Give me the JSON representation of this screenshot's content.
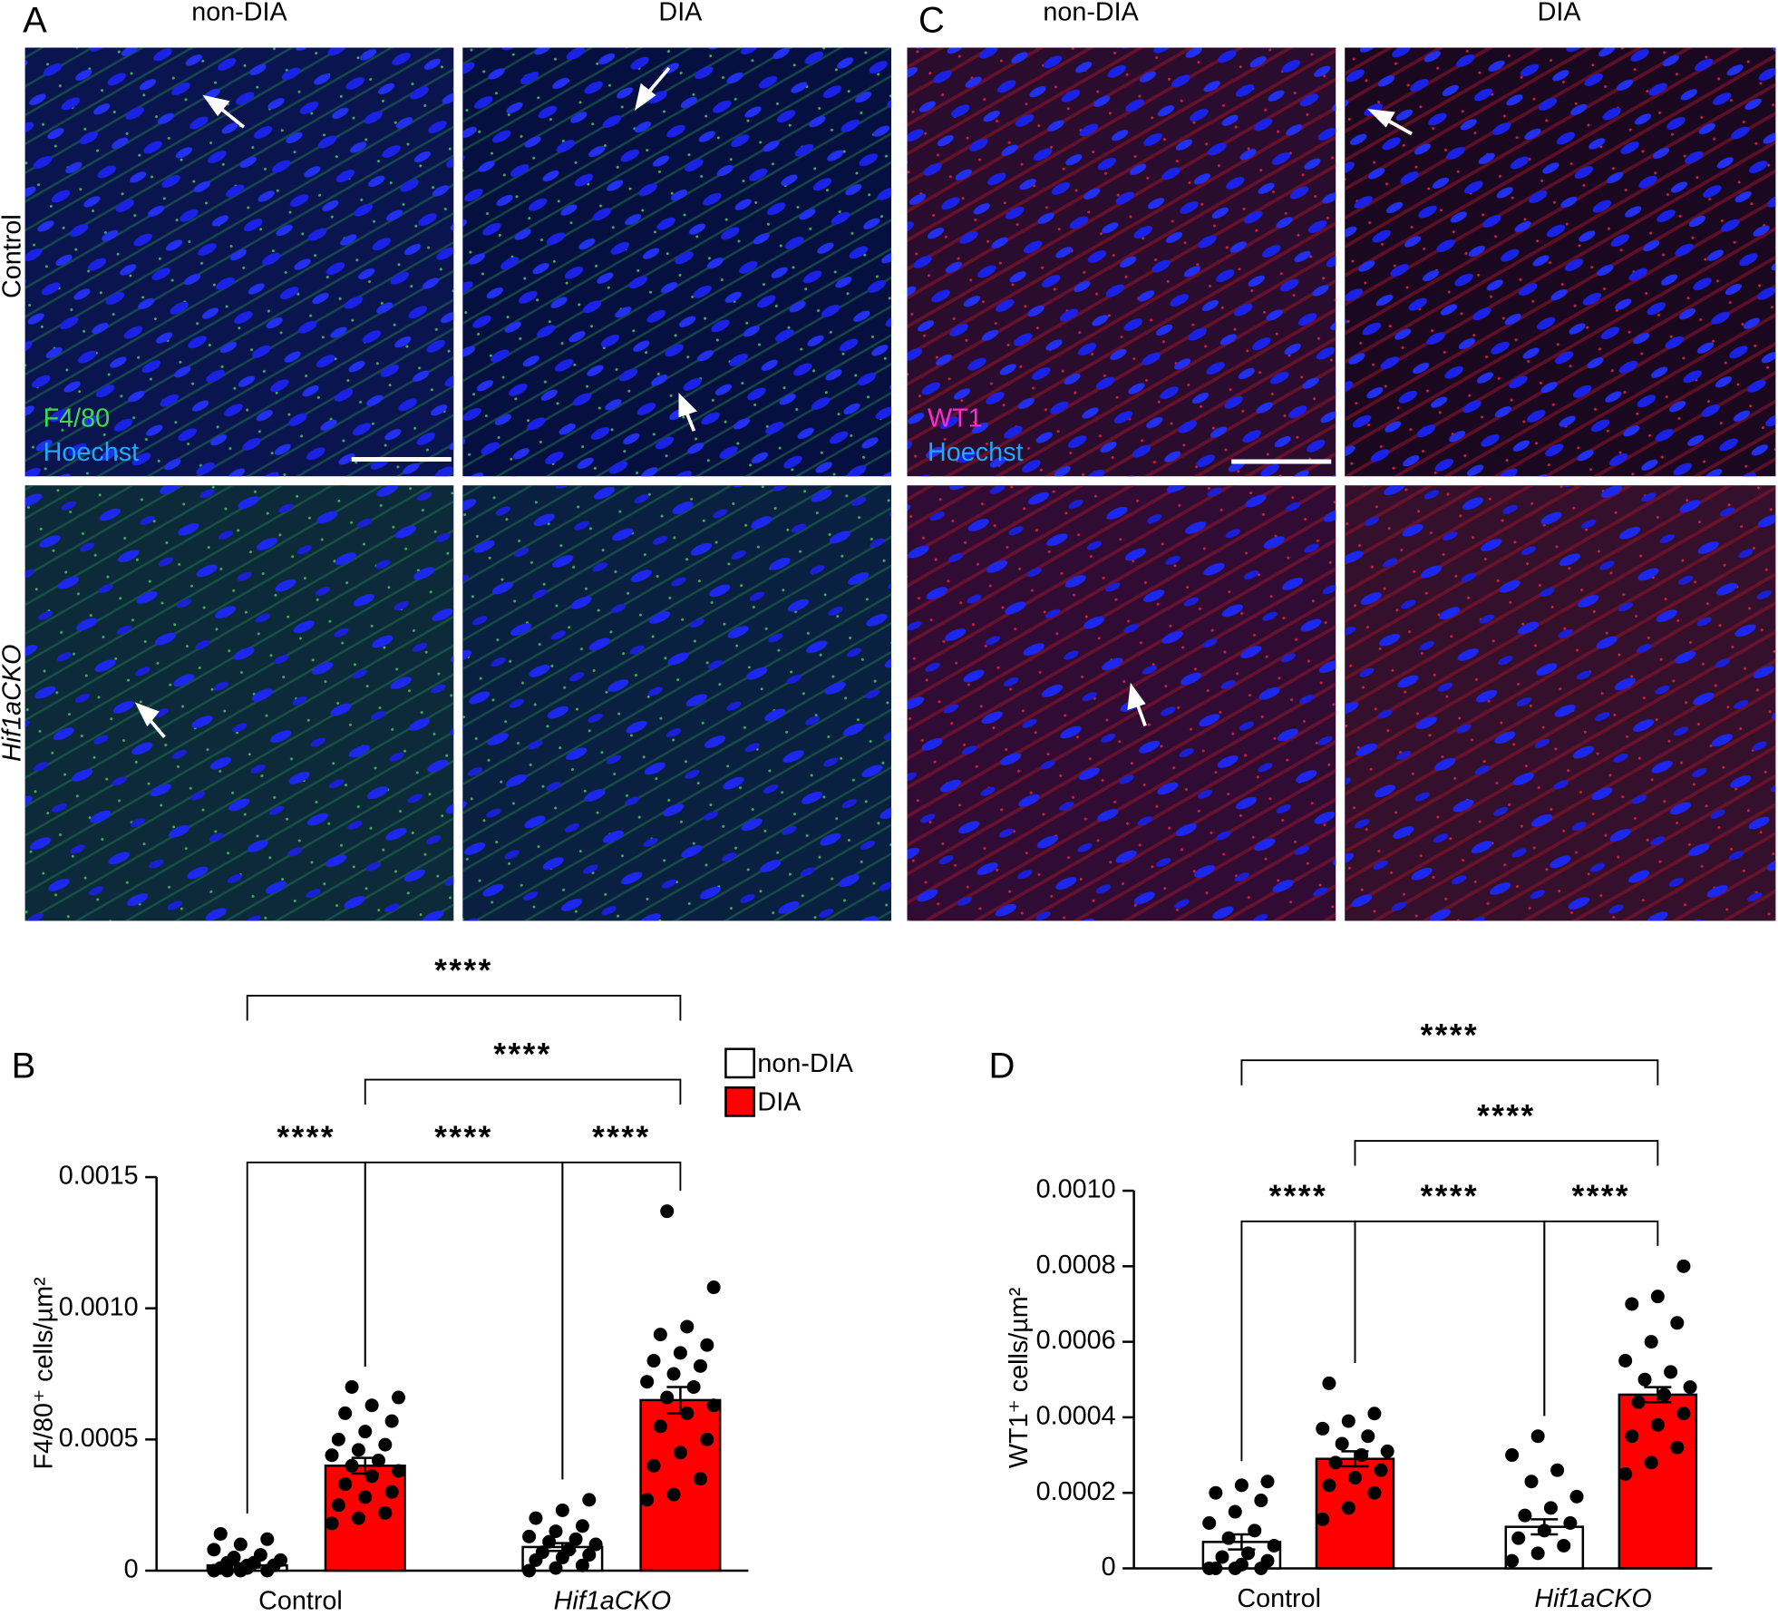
{
  "images": {
    "rows": [
      "Control",
      "Hif1aCKO"
    ],
    "panels": [
      {
        "letter": "A",
        "columns": [
          "non-DIA",
          "DIA"
        ],
        "stains": [
          "F4/80",
          "Hoechst"
        ]
      },
      {
        "letter": "C",
        "columns": [
          "non-DIA",
          "DIA"
        ],
        "stains": [
          "WT1",
          "Hoechst"
        ]
      }
    ]
  },
  "chart_data": [
    {
      "type": "bar",
      "label": "B",
      "ylabel": "F4/80⁺ cells/µm²",
      "categories": [
        "Control",
        "Hif1aCKO"
      ],
      "ylim": [
        0,
        0.0015
      ],
      "yticks": [
        0,
        0.0005,
        {
          "value": 0.001,
          "label": "0.0010"
        },
        0.0015
      ],
      "legend": true,
      "series": [
        {
          "name": "non-DIA",
          "color": "#ffffff",
          "values": [
            2e-05,
            9e-05
          ],
          "errors": [
            8e-06,
            1.5e-05
          ],
          "points": [
            [
              0,
              0,
              0,
              1e-05,
              2e-05,
              2e-05,
              3e-05,
              3e-05,
              4e-05,
              5e-05,
              6e-05,
              8e-05,
              0.0001,
              0.00012,
              0.00014,
              1e-05,
              2e-05,
              0
            ],
            [
              0,
              1e-05,
              2e-05,
              4e-05,
              5e-05,
              6e-05,
              7e-05,
              8e-05,
              0.0001,
              0.00011,
              0.00012,
              0.00013,
              0.00015,
              0.00017,
              0.0002,
              0.00023,
              0.00027
            ]
          ]
        },
        {
          "name": "DIA",
          "color": "#ff0000",
          "values": [
            0.0004,
            0.00065
          ],
          "errors": [
            3e-05,
            5e-05
          ],
          "points": [
            [
              0.00018,
              0.0002,
              0.00022,
              0.00025,
              0.00028,
              0.0003,
              0.00033,
              0.00036,
              0.00038,
              0.0004,
              0.00042,
              0.00044,
              0.00046,
              0.00048,
              0.0005,
              0.00053,
              0.00057,
              0.0006,
              0.00063,
              0.00066,
              0.0007
            ],
            [
              0.00027,
              0.00029,
              0.00035,
              0.0004,
              0.00045,
              0.0005,
              0.00055,
              0.0006,
              0.00063,
              0.00066,
              0.0007,
              0.00072,
              0.00075,
              0.00078,
              0.0008,
              0.00083,
              0.00086,
              0.0009,
              0.00093,
              0.00108,
              0.00137
            ]
          ]
        }
      ],
      "comparisons": [
        {
          "label": "****",
          "groups": [
            [
              0,
              0
            ],
            [
              0,
              1
            ]
          ]
        },
        {
          "label": "****",
          "groups": [
            [
              0,
              1
            ],
            [
              1,
              0
            ]
          ]
        },
        {
          "label": "****",
          "groups": [
            [
              1,
              0
            ],
            [
              1,
              1
            ]
          ]
        },
        {
          "label": "****",
          "groups": [
            [
              0,
              1
            ],
            [
              1,
              1
            ]
          ]
        },
        {
          "label": "****",
          "groups": [
            [
              0,
              0
            ],
            [
              1,
              1
            ]
          ]
        }
      ]
    },
    {
      "type": "bar",
      "label": "D",
      "ylabel": "WT1⁺ cells/µm²",
      "categories": [
        "Control",
        "Hif1aCKO"
      ],
      "ylim": [
        0,
        0.001
      ],
      "yticks": [
        0,
        0.0002,
        0.0004,
        0.0006,
        0.0008,
        {
          "value": 0.001,
          "label": "0.0010"
        }
      ],
      "legend": false,
      "series": [
        {
          "name": "non-DIA",
          "color": "#ffffff",
          "values": [
            7e-05,
            0.00011
          ],
          "errors": [
            2e-05,
            2e-05
          ],
          "points": [
            [
              0,
              0,
              0,
              0,
              1e-05,
              2e-05,
              3e-05,
              4e-05,
              6e-05,
              8e-05,
              0.0001,
              0.00012,
              0.00015,
              0.00018,
              0.0002,
              0.00022,
              0.00023
            ],
            [
              2e-05,
              4e-05,
              6e-05,
              8e-05,
              0.0001,
              0.00012,
              0.00014,
              0.00016,
              0.00019,
              0.00023,
              0.00026,
              0.0003,
              0.00035
            ]
          ]
        },
        {
          "name": "DIA",
          "color": "#ff0000",
          "values": [
            0.00029,
            0.00046
          ],
          "errors": [
            2e-05,
            2e-05
          ],
          "points": [
            [
              0.00013,
              0.00016,
              0.0002,
              0.00022,
              0.00024,
              0.00026,
              0.00028,
              0.0003,
              0.00031,
              0.00033,
              0.00035,
              0.00037,
              0.00039,
              0.00041,
              0.00049
            ],
            [
              0.00025,
              0.00028,
              0.00032,
              0.00035,
              0.00038,
              0.00041,
              0.00044,
              0.00046,
              0.00048,
              0.0005,
              0.00052,
              0.00055,
              0.0006,
              0.00065,
              0.0007,
              0.00072,
              0.0008
            ]
          ]
        }
      ],
      "comparisons": [
        {
          "label": "****",
          "groups": [
            [
              0,
              0
            ],
            [
              0,
              1
            ]
          ]
        },
        {
          "label": "****",
          "groups": [
            [
              0,
              1
            ],
            [
              1,
              0
            ]
          ]
        },
        {
          "label": "****",
          "groups": [
            [
              1,
              0
            ],
            [
              1,
              1
            ]
          ]
        },
        {
          "label": "****",
          "groups": [
            [
              0,
              1
            ],
            [
              1,
              1
            ]
          ]
        },
        {
          "label": "****",
          "groups": [
            [
              0,
              0
            ],
            [
              1,
              1
            ]
          ]
        }
      ]
    }
  ]
}
